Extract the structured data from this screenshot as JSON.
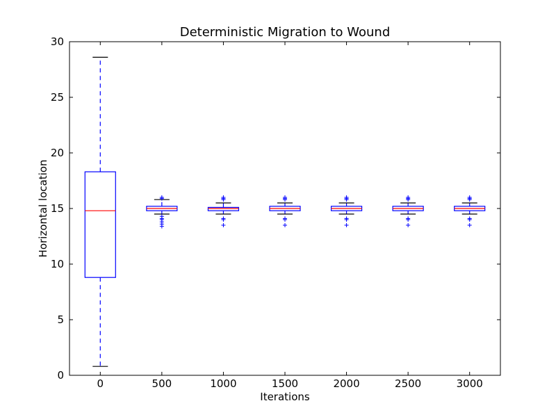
{
  "chart_data": {
    "type": "box",
    "title": "Deterministic Migration to Wound",
    "xlabel": "Iterations",
    "ylabel": "Horizontal location",
    "ylim": [
      0,
      30
    ],
    "yticks": [
      "0",
      "5",
      "10",
      "15",
      "20",
      "25",
      "30"
    ],
    "categories": [
      "0",
      "500",
      "1000",
      "1500",
      "2000",
      "2500",
      "3000"
    ],
    "grid": false,
    "box_color": "#0000ff",
    "median_color": "#ff0000",
    "whisker_color": "#0000ff",
    "cap_color": "#000000",
    "flier_color": "#0000ff",
    "boxes": [
      {
        "label": "0",
        "whislo": 0.8,
        "q1": 8.8,
        "med": 14.8,
        "q3": 18.3,
        "whishi": 28.6,
        "fliers": []
      },
      {
        "label": "500",
        "whislo": 14.5,
        "q1": 14.8,
        "med": 15.0,
        "q3": 15.2,
        "whishi": 15.8,
        "fliers": [
          13.4,
          13.6,
          13.8,
          14.0,
          14.1,
          14.3,
          15.9,
          16.0
        ]
      },
      {
        "label": "1000",
        "whislo": 14.5,
        "q1": 14.8,
        "med": 15.0,
        "q3": 15.1,
        "whishi": 15.5,
        "fliers": [
          13.5,
          14.0,
          14.1,
          15.8,
          15.9,
          16.0
        ]
      },
      {
        "label": "1500",
        "whislo": 14.5,
        "q1": 14.8,
        "med": 15.0,
        "q3": 15.2,
        "whishi": 15.5,
        "fliers": [
          13.5,
          14.0,
          14.1,
          15.8,
          15.9,
          16.0
        ]
      },
      {
        "label": "2000",
        "whislo": 14.5,
        "q1": 14.8,
        "med": 15.0,
        "q3": 15.2,
        "whishi": 15.5,
        "fliers": [
          13.5,
          14.0,
          14.1,
          15.8,
          15.9,
          16.0
        ]
      },
      {
        "label": "2500",
        "whislo": 14.5,
        "q1": 14.8,
        "med": 15.0,
        "q3": 15.2,
        "whishi": 15.5,
        "fliers": [
          13.5,
          14.0,
          14.1,
          15.8,
          15.9,
          16.0
        ]
      },
      {
        "label": "3000",
        "whislo": 14.5,
        "q1": 14.8,
        "med": 15.0,
        "q3": 15.2,
        "whishi": 15.5,
        "fliers": [
          13.5,
          14.0,
          14.1,
          15.8,
          15.9,
          16.0
        ]
      }
    ]
  }
}
